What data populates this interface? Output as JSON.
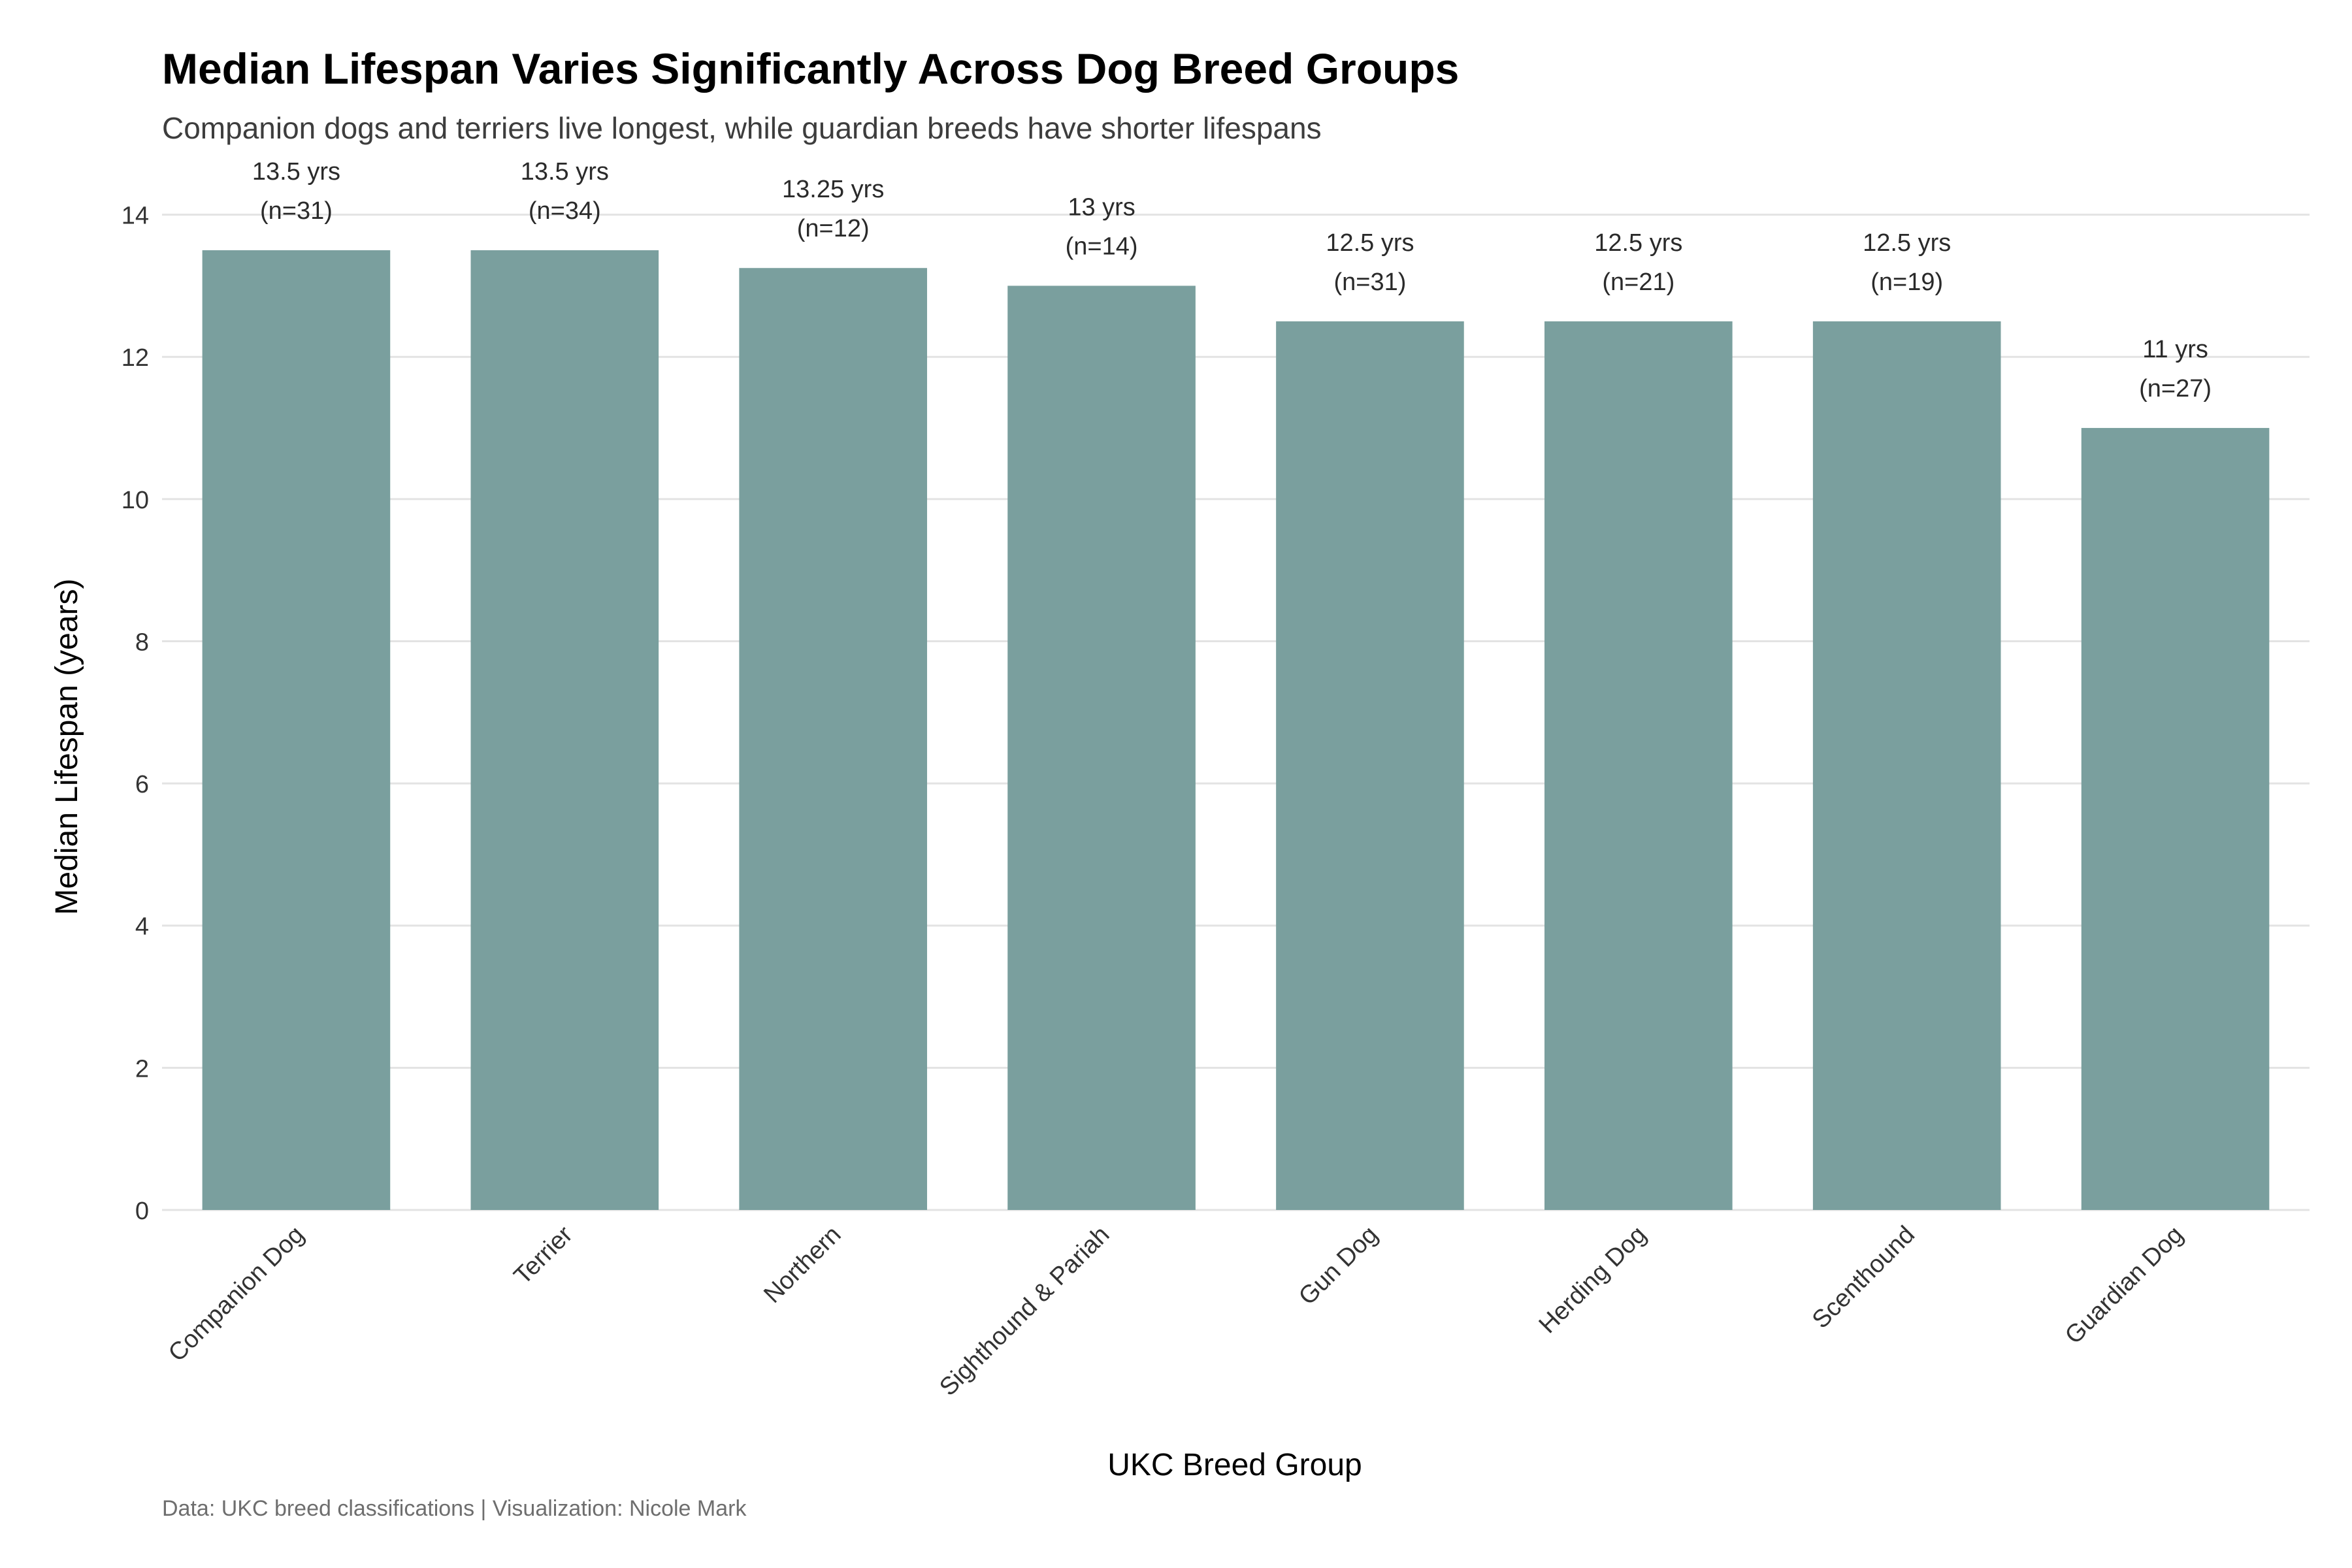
{
  "chart_data": {
    "type": "bar",
    "title": "Median Lifespan Varies Significantly Across Dog Breed Groups",
    "subtitle": "Companion dogs and terriers live longest, while guardian breeds have shorter lifespans",
    "caption": "Data: UKC breed classifications | Visualization: Nicole Mark",
    "xlabel": "UKC Breed Group",
    "ylabel": "Median Lifespan (years)",
    "categories": [
      "Companion Dog",
      "Terrier",
      "Northern",
      "Sighthound & Pariah",
      "Gun Dog",
      "Herding Dog",
      "Scenthound",
      "Guardian Dog"
    ],
    "values": [
      13.5,
      13.5,
      13.25,
      13,
      12.5,
      12.5,
      12.5,
      11
    ],
    "value_labels": [
      "13.5 yrs",
      "13.5 yrs",
      "13.25 yrs",
      "13 yrs",
      "12.5 yrs",
      "12.5 yrs",
      "12.5 yrs",
      "11 yrs"
    ],
    "count_labels": [
      "(n=31)",
      "(n=34)",
      "(n=12)",
      "(n=14)",
      "(n=31)",
      "(n=21)",
      "(n=19)",
      "(n=27)"
    ],
    "y_ticks": [
      0,
      2,
      4,
      6,
      8,
      10,
      12,
      14
    ],
    "ylim": [
      0,
      14.75
    ],
    "grid": true,
    "legend": "none",
    "bar_color": "#7a9f9e"
  }
}
